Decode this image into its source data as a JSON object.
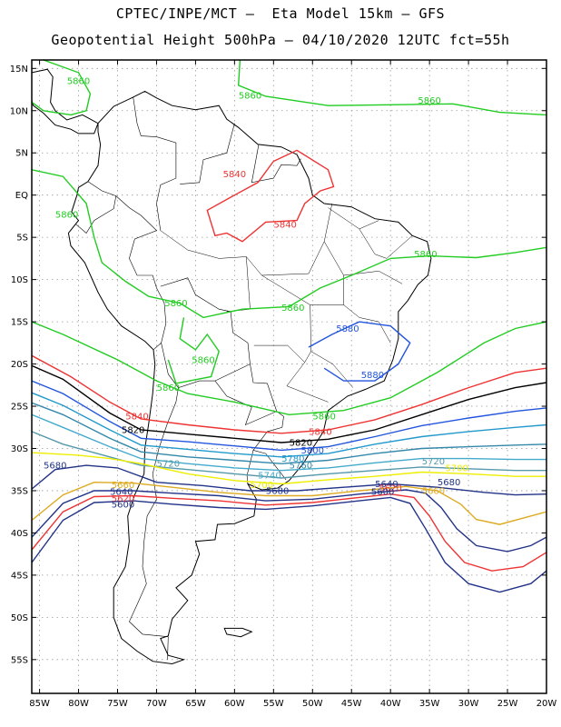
{
  "header": {
    "line1": "CPTEC/INPE/MCT –  Eta Model 15km – GFS",
    "line2": "Geopotential Height 500hPa – 04/10/2020 12UTC fct=55h"
  },
  "axes": {
    "lat_labels": [
      "15N",
      "10N",
      "5N",
      "EQ",
      "5S",
      "10S",
      "15S",
      "20S",
      "25S",
      "30S",
      "35S",
      "40S",
      "45S",
      "50S",
      "55S"
    ],
    "lon_labels": [
      "85W",
      "80W",
      "75W",
      "70W",
      "65W",
      "60W",
      "55W",
      "50W",
      "45W",
      "40W",
      "35W",
      "30W",
      "25W",
      "20W"
    ],
    "lat_range": [
      16,
      -59
    ],
    "lon_range": [
      -86,
      -20
    ],
    "grid": "dotted"
  },
  "contours": [
    {
      "level": "5860",
      "color": "#22cc22"
    },
    {
      "level": "5840",
      "color": "#ee3333"
    },
    {
      "level": "5820",
      "color": "#000000"
    },
    {
      "level": "5800",
      "color": "#2255dd"
    },
    {
      "level": "5780",
      "color": "#2299cc"
    },
    {
      "level": "5760",
      "color": "#3388aa"
    },
    {
      "level": "5740",
      "color": "#44aacc"
    },
    {
      "level": "5720",
      "color": "#5599aa"
    },
    {
      "level": "5700",
      "color": "#eeee00"
    },
    {
      "level": "5680",
      "color": "#ddaa22"
    }
  ],
  "labels": [
    {
      "text": "5860",
      "lon": -80,
      "lat": 13.5,
      "color": "#22cc22"
    },
    {
      "text": "5860",
      "lon": -58,
      "lat": 11.8,
      "color": "#22cc22"
    },
    {
      "text": "5860",
      "lon": -35,
      "lat": 11.2,
      "color": "#22cc22"
    },
    {
      "text": "5840",
      "lon": -60,
      "lat": 2.5,
      "color": "#ee3333"
    },
    {
      "text": "5840",
      "lon": -53.5,
      "lat": -3.5,
      "color": "#ee3333"
    },
    {
      "text": "5860",
      "lon": -81.5,
      "lat": -2.3,
      "color": "#22cc22"
    },
    {
      "text": "5860",
      "lon": -35.5,
      "lat": -7.0,
      "color": "#22cc22"
    },
    {
      "text": "5860",
      "lon": -67.5,
      "lat": -12.8,
      "color": "#22cc22"
    },
    {
      "text": "5860",
      "lon": -52.5,
      "lat": -13.3,
      "color": "#22cc22"
    },
    {
      "text": "5880",
      "lon": -45.5,
      "lat": -15.8,
      "color": "#2255dd"
    },
    {
      "text": "5860",
      "lon": -64,
      "lat": -19.5,
      "color": "#22cc22"
    },
    {
      "text": "5880",
      "lon": -42.3,
      "lat": -21.3,
      "color": "#2255dd"
    },
    {
      "text": "5860",
      "lon": -68.5,
      "lat": -22.8,
      "color": "#22cc22"
    },
    {
      "text": "5840",
      "lon": -72.5,
      "lat": -26.2,
      "color": "#ee3333"
    },
    {
      "text": "5860",
      "lon": -48.5,
      "lat": -26.2,
      "color": "#22cc22"
    },
    {
      "text": "5820",
      "lon": -73,
      "lat": -27.8,
      "color": "#000000"
    },
    {
      "text": "5840",
      "lon": -49,
      "lat": -28.0,
      "color": "#ee3333"
    },
    {
      "text": "5820",
      "lon": -51.5,
      "lat": -29.3,
      "color": "#000000"
    },
    {
      "text": "5800",
      "lon": -50,
      "lat": -30.2,
      "color": "#2255dd"
    },
    {
      "text": "5780",
      "lon": -52.5,
      "lat": -31.2,
      "color": "#2299cc"
    },
    {
      "text": "5760",
      "lon": -51.5,
      "lat": -32.0,
      "color": "#3388aa"
    },
    {
      "text": "5720",
      "lon": -68.5,
      "lat": -31.8,
      "color": "#5599aa"
    },
    {
      "text": "5720",
      "lon": -34.5,
      "lat": -31.5,
      "color": "#5599aa"
    },
    {
      "text": "5700",
      "lon": -31.5,
      "lat": -32.3,
      "color": "#eeee00"
    },
    {
      "text": "5680",
      "lon": -83,
      "lat": -32.0,
      "color": "#223388"
    },
    {
      "text": "5740",
      "lon": -55.5,
      "lat": -33.2,
      "color": "#44aacc"
    },
    {
      "text": "5700",
      "lon": -56.5,
      "lat": -34.3,
      "color": "#eeee00"
    },
    {
      "text": "5680",
      "lon": -54.5,
      "lat": -35.0,
      "color": "#223388"
    },
    {
      "text": "5680",
      "lon": -32.5,
      "lat": -34.0,
      "color": "#223388"
    },
    {
      "text": "5640",
      "lon": -40.5,
      "lat": -34.2,
      "color": "#223388"
    },
    {
      "text": "5620",
      "lon": -40.0,
      "lat": -34.7,
      "color": "#ee3333"
    },
    {
      "text": "5600",
      "lon": -41.0,
      "lat": -35.1,
      "color": "#223388"
    },
    {
      "text": "5660",
      "lon": -34.5,
      "lat": -35.0,
      "color": "#ddaa22"
    },
    {
      "text": "5660",
      "lon": -74.3,
      "lat": -34.3,
      "color": "#ddaa22"
    },
    {
      "text": "5640",
      "lon": -74.5,
      "lat": -35.1,
      "color": "#223388"
    },
    {
      "text": "5620",
      "lon": -74.3,
      "lat": -35.9,
      "color": "#ee3333"
    },
    {
      "text": "5600",
      "lon": -74.3,
      "lat": -36.6,
      "color": "#223388"
    }
  ]
}
